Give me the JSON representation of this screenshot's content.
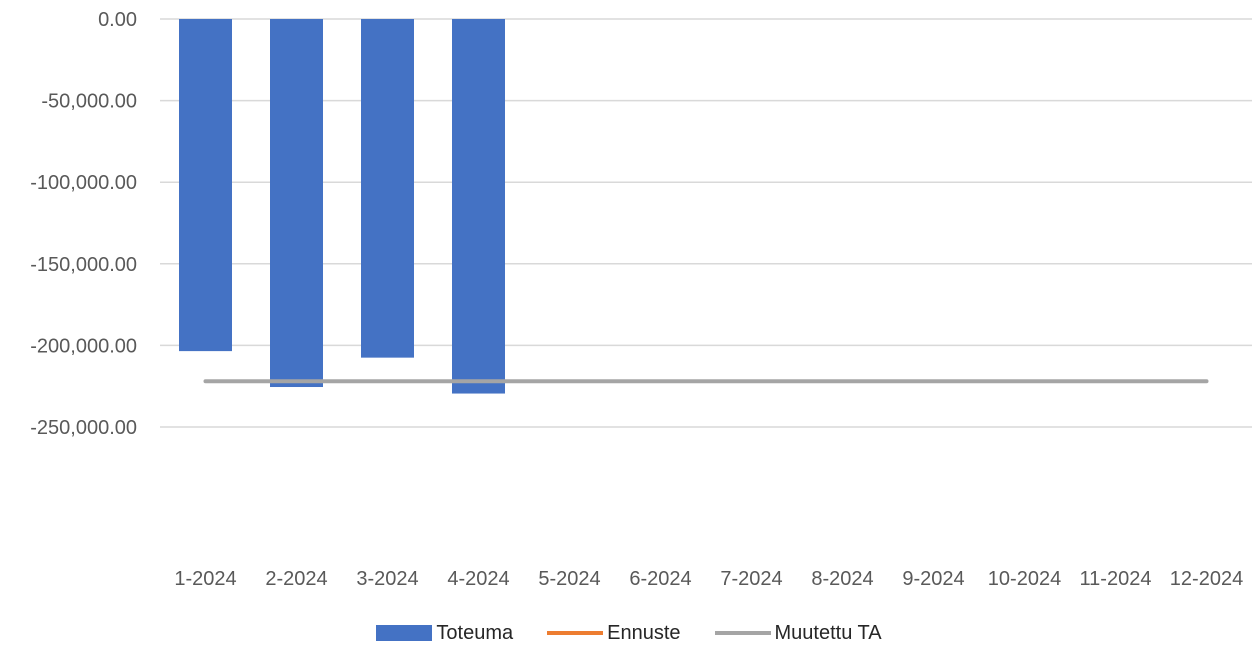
{
  "chart_data": {
    "type": "bar",
    "title": "",
    "xlabel": "",
    "ylabel": "",
    "categories": [
      "1-2024",
      "2-2024",
      "3-2024",
      "4-2024",
      "5-2024",
      "6-2024",
      "7-2024",
      "8-2024",
      "9-2024",
      "10-2024",
      "11-2024",
      "12-2024"
    ],
    "ylim": [
      -250000,
      0
    ],
    "yticks": [
      0,
      -50000,
      -100000,
      -150000,
      -200000,
      -250000
    ],
    "ytick_labels": [
      "0.00",
      "-50,000.00",
      "-100,000.00",
      "-150,000.00",
      "-200,000.00",
      "-250,000.00"
    ],
    "grid": true,
    "legend_position": "bottom",
    "series": [
      {
        "name": "Toteuma",
        "kind": "bar",
        "color": "#4472C4",
        "values": [
          -203500,
          -225500,
          -207500,
          -229500,
          null,
          null,
          null,
          null,
          null,
          null,
          null,
          null
        ]
      },
      {
        "name": "Ennuste",
        "kind": "line",
        "color": "#ED7D31",
        "values": [
          null,
          null,
          null,
          null,
          null,
          null,
          null,
          null,
          null,
          null,
          null,
          null
        ]
      },
      {
        "name": "Muutettu TA",
        "kind": "line",
        "color": "#A5A5A5",
        "values": [
          -222000,
          -222000,
          -222000,
          -222000,
          -222000,
          -222000,
          -222000,
          -222000,
          -222000,
          -222000,
          -222000,
          -222000
        ]
      }
    ]
  }
}
